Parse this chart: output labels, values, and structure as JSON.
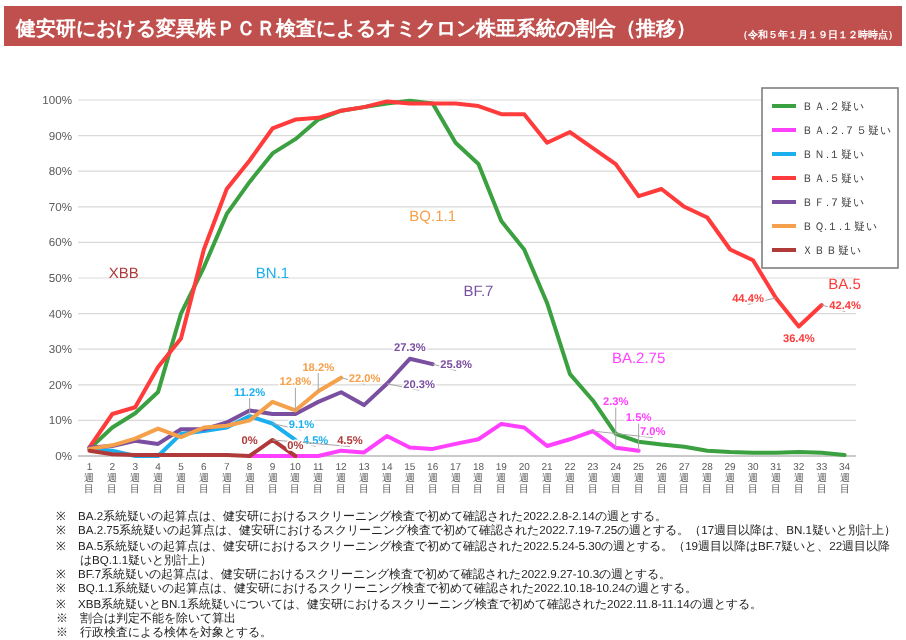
{
  "chart_data": {
    "type": "line",
    "title": "健安研における変異株ＰＣＲ検査によるオミクロン株亜系統の割合（推移）",
    "subtitle": "（令和５年１月１９日１２時時点）",
    "categories": [
      "1週目",
      "2週目",
      "3週目",
      "4週目",
      "5週目",
      "6週目",
      "7週目",
      "8週目",
      "9週目",
      "10週目",
      "11週目",
      "12週目",
      "13週目",
      "14週目",
      "15週目",
      "16週目",
      "17週目",
      "18週目",
      "19週目",
      "20週目",
      "21週目",
      "22週目",
      "23週目",
      "24週目",
      "25週目",
      "26週目",
      "27週目",
      "28週目",
      "29週目",
      "30週目",
      "31週目",
      "32週目",
      "33週目",
      "34週目"
    ],
    "series": [
      {
        "name": "ＢＡ.２疑い",
        "color": "#3aa040",
        "values": [
          2,
          8,
          12,
          18,
          40,
          53,
          68,
          77,
          85,
          89,
          94.5,
          97,
          98,
          99,
          99.8,
          99,
          88,
          82,
          66,
          58,
          43,
          23,
          15.6,
          6.2,
          4,
          3.2,
          2.6,
          1.5,
          1.1,
          0.9,
          0.9,
          1.1,
          0.9,
          0.3
        ]
      },
      {
        "name": "ＢＡ.２.７５疑い",
        "color": "#ff40ff",
        "values": [
          null,
          null,
          null,
          null,
          null,
          null,
          null,
          0,
          0,
          0,
          0,
          1.5,
          1,
          5.6,
          2.4,
          2,
          3.4,
          4.7,
          9,
          8,
          2.8,
          4.7,
          7.0,
          2.3,
          1.5,
          null,
          null,
          null,
          null,
          null,
          null,
          null,
          null,
          null
        ],
        "value_labels": [
          null,
          null,
          null,
          null,
          null,
          null,
          null,
          null,
          null,
          null,
          null,
          null,
          null,
          null,
          null,
          null,
          null,
          null,
          null,
          null,
          null,
          null,
          "7.0%",
          "2.3%",
          "1.5%",
          null,
          null,
          null,
          null,
          null,
          null,
          null,
          null,
          null
        ]
      },
      {
        "name": "ＢＮ.１疑い",
        "color": "#1ab0f0",
        "values": [
          2,
          1.5,
          0,
          0,
          6.2,
          7,
          8,
          11.2,
          9.1,
          4.5,
          null,
          null,
          null,
          null,
          null,
          null,
          null,
          null,
          null,
          null,
          null,
          null,
          null,
          null,
          null,
          null,
          null,
          null,
          null,
          null,
          null,
          null,
          null,
          null
        ],
        "value_labels": [
          null,
          null,
          null,
          null,
          null,
          null,
          null,
          "11.2%",
          "9.1%",
          "4.5%",
          null,
          null,
          null,
          null,
          null,
          null,
          null,
          null,
          null,
          null,
          null,
          null,
          null,
          null,
          null,
          null,
          null,
          null,
          null,
          null,
          null,
          null,
          null,
          null
        ]
      },
      {
        "name": "ＢＡ.５疑い",
        "color": "#ff3b3b",
        "values": [
          2.4,
          11.8,
          13.7,
          25,
          33,
          58,
          75,
          83,
          92,
          94.5,
          95,
          97,
          98,
          99.6,
          99,
          99,
          99,
          98.3,
          96,
          96,
          88,
          91,
          86.5,
          82,
          73,
          75,
          70,
          67,
          58,
          55,
          44.4,
          36.4,
          42.4,
          null
        ],
        "value_labels": [
          null,
          null,
          null,
          null,
          null,
          null,
          null,
          null,
          null,
          null,
          null,
          null,
          null,
          null,
          null,
          null,
          null,
          null,
          null,
          null,
          null,
          null,
          null,
          null,
          null,
          null,
          null,
          null,
          null,
          null,
          "44.4%",
          "36.4%",
          "42.4%",
          null
        ]
      },
      {
        "name": "ＢＦ.７疑い",
        "color": "#7a4fa0",
        "values": [
          2.4,
          2.8,
          4.3,
          3.4,
          7.5,
          7.5,
          9.4,
          12.8,
          11.8,
          11.8,
          15.2,
          17.9,
          14.3,
          20.3,
          27.3,
          25.8,
          null,
          null,
          null,
          null,
          null,
          null,
          null,
          null,
          null,
          null,
          null,
          null,
          null,
          null,
          null,
          null,
          null,
          null
        ],
        "value_labels": [
          null,
          null,
          null,
          null,
          null,
          null,
          null,
          null,
          null,
          null,
          null,
          null,
          null,
          "20.3%",
          "27.3%",
          "25.8%",
          null,
          null,
          null,
          null,
          null,
          null,
          null,
          null,
          null,
          null,
          null,
          null,
          null,
          null,
          null,
          null,
          null,
          null
        ]
      },
      {
        "name": "ＢＱ.１.１疑い",
        "color": "#f5a04a",
        "values": [
          2,
          3,
          4.9,
          7.7,
          5.3,
          8,
          8.5,
          10,
          15.2,
          12.8,
          18.2,
          22.0,
          null,
          null,
          null,
          null,
          null,
          null,
          null,
          null,
          null,
          null,
          null,
          null,
          null,
          null,
          null,
          null,
          null,
          null,
          null,
          null,
          null,
          null
        ],
        "value_labels": [
          null,
          null,
          null,
          null,
          null,
          null,
          null,
          null,
          null,
          "12.8%",
          "18.2%",
          "22.0%",
          null,
          null,
          null,
          null,
          null,
          null,
          null,
          null,
          null,
          null,
          null,
          null,
          null,
          null,
          null,
          null,
          null,
          null,
          null,
          null,
          null,
          null
        ]
      },
      {
        "name": "ＸＢＢ疑い",
        "color": "#b03a3a",
        "values": [
          1.5,
          0.5,
          0.3,
          0.3,
          0.3,
          0.3,
          0.3,
          0,
          4.5,
          0,
          null,
          null,
          null,
          null,
          null,
          null,
          null,
          null,
          null,
          null,
          null,
          null,
          null,
          null,
          null,
          null,
          null,
          null,
          null,
          null,
          null,
          null,
          null,
          null
        ],
        "value_labels": [
          null,
          null,
          null,
          null,
          null,
          null,
          null,
          "0%",
          "4.5%",
          "0%",
          null,
          null,
          null,
          null,
          null,
          null,
          null,
          null,
          null,
          null,
          null,
          null,
          null,
          null,
          null,
          null,
          null,
          null,
          null,
          null,
          null,
          null,
          null,
          null
        ]
      }
    ],
    "ylim": [
      0,
      100
    ],
    "yticks": [
      {
        "value": 0,
        "label": "0%"
      },
      {
        "value": 10,
        "label": "10%"
      },
      {
        "value": 20,
        "label": "20%"
      },
      {
        "value": 30,
        "label": "30%"
      },
      {
        "value": 40,
        "label": "40%"
      },
      {
        "value": 50,
        "label": "50%"
      },
      {
        "value": 60,
        "label": "60%"
      },
      {
        "value": 70,
        "label": "70%"
      },
      {
        "value": 80,
        "label": "80%"
      },
      {
        "value": 90,
        "label": "90%"
      },
      {
        "value": 100,
        "label": "100%"
      }
    ],
    "grid": "y",
    "legend": "top right",
    "marker": "none",
    "line_style": "solid",
    "annotations": [
      "XBB",
      "BN.1",
      "BQ.1.1",
      "BF.7",
      "BA.2.75",
      "BA.5",
      "※　BA.2系統疑いの起算点は、健安研におけるスクリーニング検査で初めて確認された2022.2.8-2.14の週とする。",
      "※　BA.2.75系統疑いの起算点は、健安研におけるスクリーニング検査で初めて確認された2022.7.19-7.25の週とする。（17週目以降は、BN.1疑いと別計上）",
      "※　BA.5系統疑いの起算点は、健安研におけるスクリーニング検査で初めて確認された2022.5.24-5.30の週とする。（19週目以降はBF.7疑いと、22週目以降はBQ.1.1疑いと別計上）",
      "※　BF.7系統疑いの起算点は、健安研におけるスクリーニング検査で初めて確認された2022.9.27-10.3の週とする。",
      "※　BQ.1.1系統疑いの起算点は、健安研におけるスクリーニング検査で初めて確認された2022.10.18-10.24の週とする。",
      "※　XBB系統疑いとBN.1系統疑いについては、健安研におけるスクリーニング検査で初めて確認された2022.11.8-11.14の週とする。",
      "※　割合は判定不能を除いて算出",
      "※　行政検査による検体を対象とする。"
    ]
  }
}
